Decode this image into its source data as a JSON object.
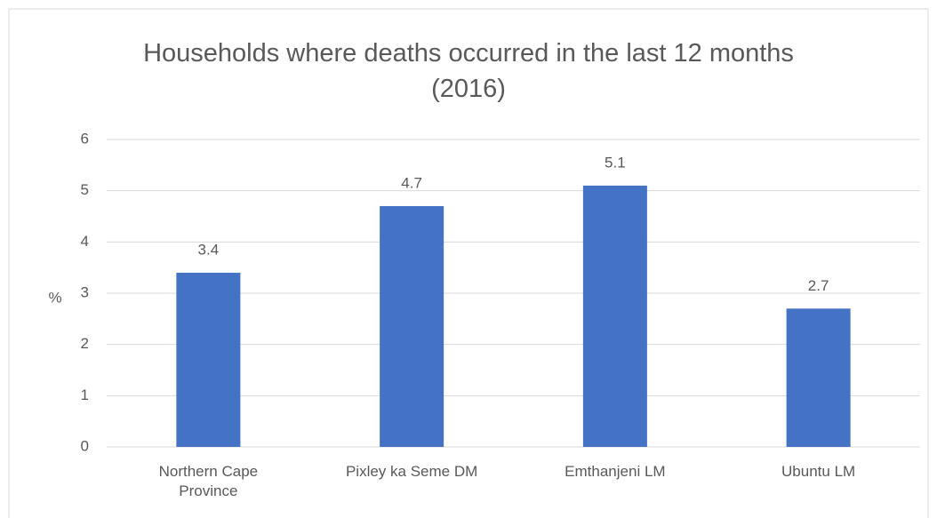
{
  "chart_data": {
    "type": "bar",
    "title": "Households where deaths occurred in the last 12 months (2016)",
    "y_label": "%",
    "categories": [
      "Northern Cape Province",
      "Pixley ka Seme DM",
      "Emthanjeni LM",
      "Ubuntu LM"
    ],
    "values": [
      3.4,
      4.7,
      5.1,
      2.7
    ],
    "color": "#4472c4",
    "ylim": [
      0,
      6
    ],
    "yticks": [
      0,
      1,
      2,
      3,
      4,
      5,
      6
    ],
    "grid": true
  }
}
